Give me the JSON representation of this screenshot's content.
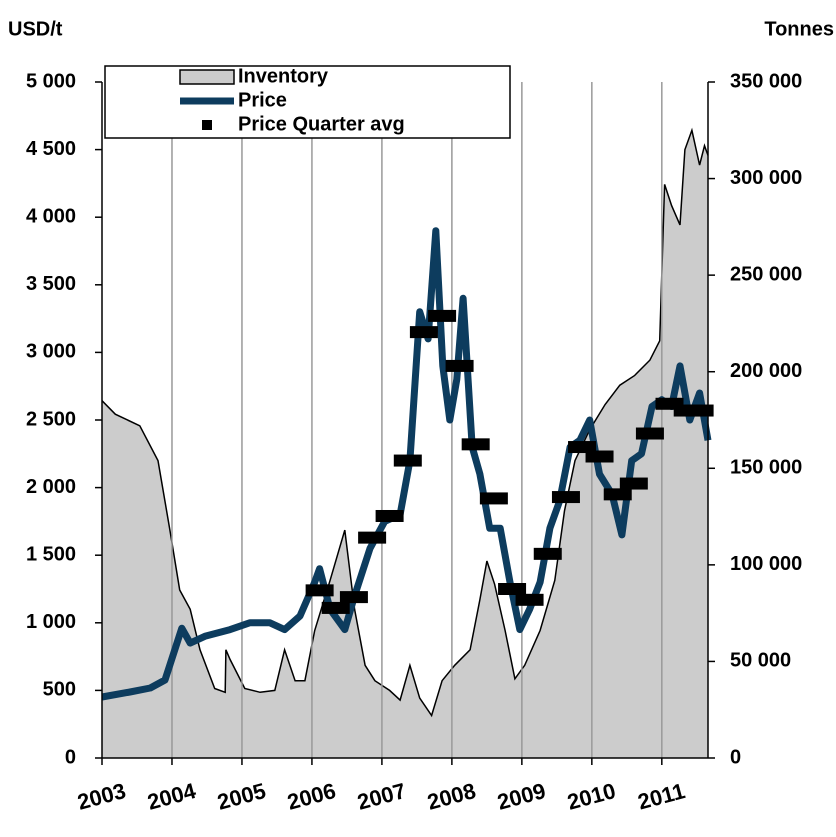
{
  "chart_data": {
    "type": "combo",
    "ylabel": "USD/t",
    "y2label": "Tonnes",
    "xlim": [
      2003,
      2011.66
    ],
    "xticks": [
      2003,
      2004,
      2005,
      2006,
      2007,
      2008,
      2009,
      2010,
      2011
    ],
    "ylim": [
      0,
      5000
    ],
    "yticks": [
      0,
      500,
      {
        "value": 1000,
        "label": "1 000"
      },
      {
        "value": 1500,
        "label": "1 500"
      },
      {
        "value": 2000,
        "label": "2 000"
      },
      {
        "value": 2500,
        "label": "2 500"
      },
      {
        "value": 3000,
        "label": "3 000"
      },
      {
        "value": 3500,
        "label": "3 500"
      },
      {
        "value": 4000,
        "label": "4 000"
      },
      {
        "value": 4500,
        "label": "4 500"
      },
      {
        "value": 5000,
        "label": "5 000"
      }
    ],
    "y2lim": [
      0,
      350000
    ],
    "y2ticks": [
      0,
      {
        "value": 50000,
        "label": "50 000"
      },
      {
        "value": 100000,
        "label": "100 000"
      },
      {
        "value": 150000,
        "label": "150 000"
      },
      {
        "value": 200000,
        "label": "200 000"
      },
      {
        "value": 250000,
        "label": "250 000"
      },
      {
        "value": 300000,
        "label": "300 000"
      },
      {
        "value": 350000,
        "label": "350 000"
      }
    ],
    "grid": "x",
    "legend": "top-left",
    "series": [
      {
        "name": "Inventory",
        "type": "area",
        "axis": "y2",
        "color": "#cccccc",
        "x": [
          2003.0,
          2003.19,
          2003.54,
          2003.8,
          2003.97,
          2004.11,
          2004.26,
          2004.4,
          2004.61,
          2004.76,
          2004.77,
          2004.83,
          2005.04,
          2005.26,
          2005.47,
          2005.61,
          2005.76,
          2005.9,
          2006.04,
          2006.26,
          2006.47,
          2006.61,
          2006.76,
          2006.9,
          2007.11,
          2007.26,
          2007.4,
          2007.54,
          2007.71,
          2007.86,
          2008.04,
          2008.26,
          2008.4,
          2008.5,
          2008.61,
          2008.76,
          2008.9,
          2009.04,
          2009.26,
          2009.47,
          2009.61,
          2009.76,
          2009.97,
          2010.19,
          2010.4,
          2010.61,
          2010.83,
          2010.97,
          2011.04,
          2011.14,
          2011.26,
          2011.33,
          2011.43,
          2011.54,
          2011.61,
          2011.66
        ],
        "values": [
          185000,
          178000,
          172000,
          154000,
          118000,
          87000,
          77000,
          56000,
          36000,
          34000,
          56000,
          51000,
          36000,
          34000,
          35000,
          56000,
          40000,
          40000,
          66000,
          92000,
          118000,
          77000,
          48000,
          40000,
          35000,
          30000,
          48000,
          31000,
          22000,
          40000,
          48000,
          56000,
          82000,
          102000,
          90000,
          66000,
          41000,
          48000,
          66000,
          92000,
          128000,
          154000,
          170000,
          183000,
          193000,
          198000,
          206000,
          216000,
          297000,
          286000,
          276000,
          315000,
          325000,
          307000,
          317000,
          312000
        ]
      },
      {
        "name": "Price",
        "type": "line",
        "axis": "y",
        "color": "#0d3c5e",
        "x": [
          2003.0,
          2003.4,
          2003.69,
          2003.9,
          2004.14,
          2004.26,
          2004.47,
          2004.83,
          2005.11,
          2005.4,
          2005.61,
          2005.83,
          2006.04,
          2006.11,
          2006.26,
          2006.47,
          2006.61,
          2006.83,
          2007.04,
          2007.26,
          2007.4,
          2007.54,
          2007.66,
          2007.77,
          2007.87,
          2007.97,
          2008.07,
          2008.16,
          2008.29,
          2008.4,
          2008.54,
          2008.69,
          2008.83,
          2008.97,
          2009.11,
          2009.26,
          2009.4,
          2009.54,
          2009.69,
          2009.83,
          2009.97,
          2010.11,
          2010.29,
          2010.43,
          2010.57,
          2010.71,
          2010.86,
          2011.0,
          2011.14,
          2011.26,
          2011.4,
          2011.54,
          2011.66
        ],
        "values": [
          451,
          488,
          518,
          577,
          960,
          850,
          900,
          950,
          1000,
          1000,
          950,
          1050,
          1300,
          1400,
          1100,
          950,
          1200,
          1550,
          1750,
          1800,
          2200,
          3300,
          3100,
          3900,
          2900,
          2500,
          2800,
          3400,
          2300,
          2100,
          1700,
          1700,
          1300,
          950,
          1100,
          1300,
          1700,
          1900,
          2300,
          2350,
          2500,
          2100,
          1950,
          1650,
          2200,
          2250,
          2600,
          2650,
          2600,
          2900,
          2500,
          2700,
          2350
        ]
      },
      {
        "name": "Price Quarter avg",
        "type": "marker",
        "axis": "y",
        "color": "#000000",
        "x": [
          2006.11,
          2006.34,
          2006.6,
          2006.86,
          2007.11,
          2007.37,
          2007.6,
          2007.86,
          2008.11,
          2008.34,
          2008.6,
          2008.86,
          2009.11,
          2009.37,
          2009.63,
          2009.86,
          2010.11,
          2010.37,
          2010.6,
          2010.83,
          2011.11,
          2011.37,
          2011.54
        ],
        "values": [
          1240,
          1110,
          1190,
          1630,
          1790,
          2200,
          3150,
          3270,
          2900,
          2320,
          1920,
          1250,
          1170,
          1510,
          1930,
          2300,
          2230,
          1950,
          2030,
          2400,
          2620,
          2570,
          2570
        ]
      }
    ]
  }
}
